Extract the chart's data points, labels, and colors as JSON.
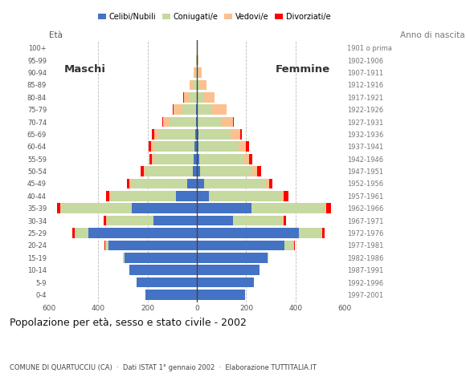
{
  "age_groups": [
    "0-4",
    "5-9",
    "10-14",
    "15-19",
    "20-24",
    "25-29",
    "30-34",
    "35-39",
    "40-44",
    "45-49",
    "50-54",
    "55-59",
    "60-64",
    "65-69",
    "70-74",
    "75-79",
    "80-84",
    "85-89",
    "90-94",
    "95-99",
    "100+"
  ],
  "birth_years": [
    "1997-2001",
    "1992-1996",
    "1987-1991",
    "1982-1986",
    "1977-1981",
    "1972-1976",
    "1967-1971",
    "1962-1966",
    "1957-1961",
    "1952-1956",
    "1947-1951",
    "1942-1946",
    "1937-1941",
    "1932-1936",
    "1927-1931",
    "1922-1926",
    "1917-1921",
    "1912-1916",
    "1907-1911",
    "1902-1906",
    "1901 o prima"
  ],
  "males_celibe": [
    210,
    245,
    275,
    295,
    360,
    440,
    175,
    265,
    85,
    38,
    18,
    14,
    9,
    8,
    4,
    2,
    1,
    1,
    0,
    0,
    0
  ],
  "males_coniugato": [
    0,
    0,
    0,
    4,
    12,
    55,
    190,
    285,
    265,
    230,
    190,
    160,
    165,
    148,
    108,
    58,
    28,
    14,
    5,
    2,
    0
  ],
  "males_vedovo": [
    0,
    0,
    0,
    0,
    0,
    2,
    3,
    4,
    5,
    5,
    7,
    9,
    12,
    18,
    25,
    35,
    24,
    14,
    8,
    3,
    1
  ],
  "males_divorziato": [
    0,
    0,
    0,
    0,
    2,
    7,
    10,
    14,
    14,
    11,
    14,
    11,
    9,
    7,
    4,
    2,
    1,
    0,
    0,
    0,
    0
  ],
  "females_nubile": [
    195,
    230,
    255,
    285,
    355,
    415,
    148,
    220,
    50,
    28,
    14,
    9,
    7,
    5,
    3,
    2,
    1,
    0,
    0,
    0,
    0
  ],
  "females_coniugata": [
    0,
    0,
    0,
    4,
    38,
    92,
    198,
    298,
    292,
    252,
    212,
    182,
    163,
    132,
    93,
    58,
    26,
    11,
    4,
    1,
    0
  ],
  "females_vedova": [
    0,
    0,
    0,
    0,
    1,
    2,
    5,
    8,
    10,
    12,
    18,
    22,
    30,
    40,
    50,
    60,
    44,
    29,
    14,
    6,
    2
  ],
  "females_divorziata": [
    0,
    0,
    0,
    0,
    2,
    8,
    12,
    18,
    19,
    15,
    18,
    12,
    10,
    5,
    3,
    1,
    0,
    0,
    0,
    0,
    0
  ],
  "color_celibe": "#4472C4",
  "color_coniugato": "#C5D9A0",
  "color_vedovo": "#FAC090",
  "color_divorziato": "#FF0000",
  "xlim": 600,
  "title": "Popolazione per età, sesso e stato civile - 2002",
  "subtitle": "COMUNE DI QUARTUCCIU (CA)  ·  Dati ISTAT 1° gennaio 2002  ·  Elaborazione TUTTITALIA.IT",
  "label_eta": "Età",
  "label_anno": "Anno di nascita",
  "label_maschi": "Maschi",
  "label_femmine": "Femmine",
  "legend_labels": [
    "Celibi/Nubili",
    "Coniugati/e",
    "Vedovi/e",
    "Divorziati/e"
  ],
  "bg_color": "#FFFFFF",
  "bar_height": 0.82
}
